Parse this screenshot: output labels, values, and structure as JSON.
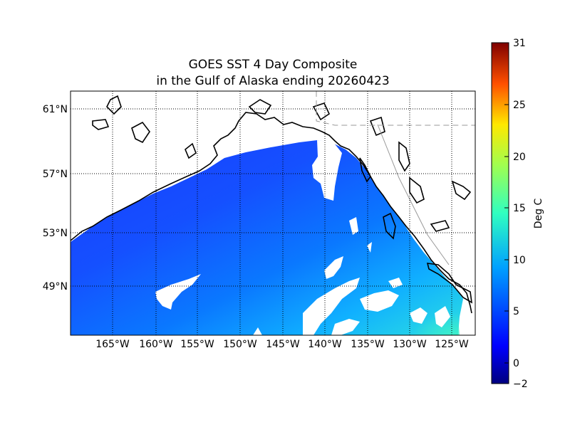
{
  "title": {
    "line1": "GOES SST 4 Day Composite",
    "line2": "in the Gulf of Alaska ending 20260423"
  },
  "map": {
    "lat_labels": [
      "61°N",
      "57°N",
      "53°N",
      "49°N"
    ],
    "lon_labels": [
      "165°W",
      "160°W",
      "155°W",
      "150°W",
      "145°W",
      "140°W",
      "135°W",
      "130°W",
      "125°W"
    ],
    "colors": {
      "land": "#ffffff",
      "coastline": "#000000",
      "grid": "#000000",
      "cold_ocean": "#1a44ff",
      "warm_ocean": "#2bd6e6"
    }
  },
  "colorbar": {
    "label": "Deg C",
    "ticks": [
      "31",
      "25",
      "20",
      "15",
      "10",
      "5",
      "0",
      "−2"
    ],
    "colormap": "jet",
    "range": [
      -2,
      31
    ]
  }
}
